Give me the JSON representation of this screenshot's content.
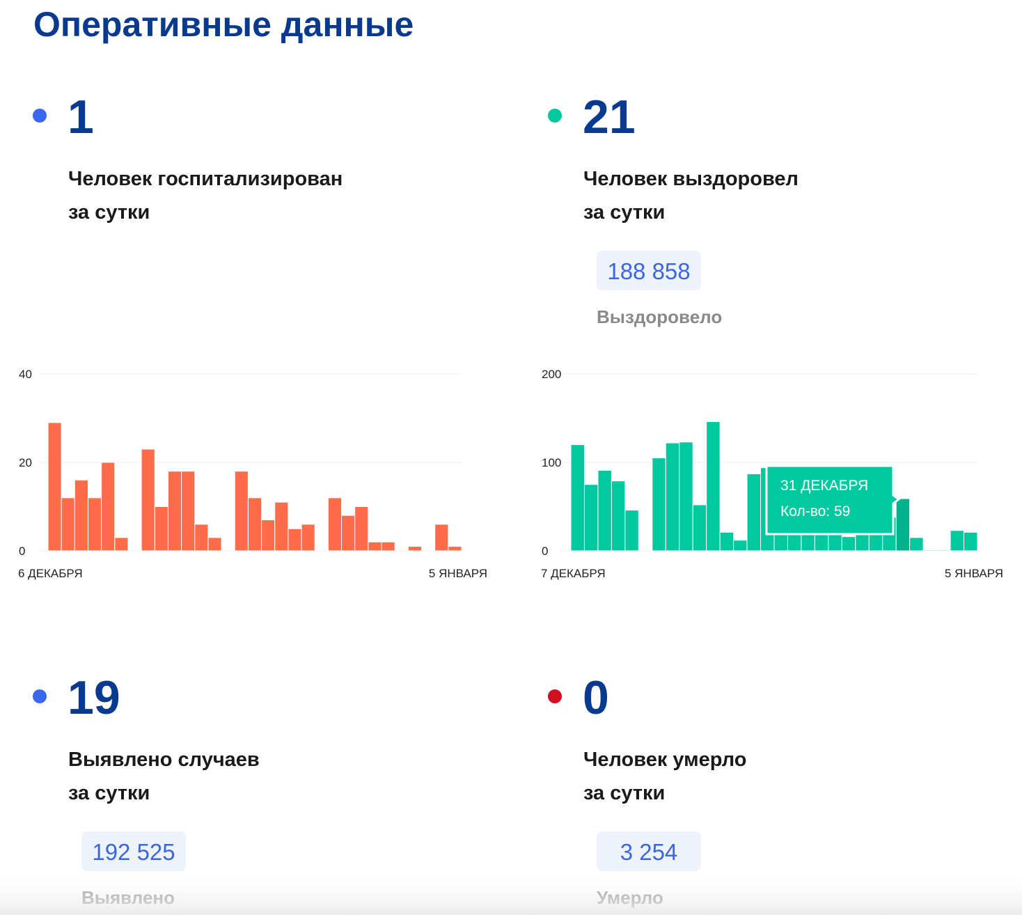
{
  "title": "Оперативные данные",
  "cards": [
    {
      "dot_color": "#3a66f0",
      "value": 1,
      "label_lines": [
        "Человек госпитализирован",
        "за сутки"
      ],
      "chart": {
        "type": "bar",
        "color": "#ff6c4a",
        "ylim": [
          0,
          40
        ],
        "yticks": [
          0,
          20,
          40
        ],
        "grid": true,
        "categories": [
          "6 ДЕКАБРЯ",
          null,
          null,
          null,
          null,
          null,
          null,
          null,
          null,
          null,
          null,
          null,
          null,
          null,
          null,
          null,
          null,
          null,
          null,
          null,
          null,
          null,
          null,
          null,
          null,
          null,
          null,
          null,
          null,
          null,
          "5 ЯНВАРЯ"
        ],
        "values": [
          29,
          12,
          16,
          12,
          20,
          3,
          0,
          23,
          10,
          18,
          18,
          6,
          3,
          0,
          18,
          12,
          7,
          11,
          5,
          6,
          0,
          12,
          8,
          10,
          2,
          2,
          0,
          1,
          0,
          6,
          1
        ]
      }
    },
    {
      "dot_color": "#00c9a0",
      "value": 21,
      "label_lines": [
        "Человек выздоровел",
        "за сутки"
      ],
      "total": "188 858",
      "total_label": "Выздоровело",
      "chart": {
        "type": "bar",
        "color": "#00c9a0",
        "highlight_color": "#00b38c",
        "ylim": [
          0,
          200
        ],
        "yticks": [
          0,
          100,
          200
        ],
        "grid": true,
        "categories": [
          "7 ДЕКАБРЯ",
          null,
          null,
          null,
          null,
          null,
          null,
          null,
          null,
          null,
          null,
          null,
          null,
          null,
          null,
          null,
          null,
          null,
          null,
          null,
          null,
          null,
          null,
          null,
          null,
          null,
          null,
          null,
          null,
          "5 ЯНВАРЯ"
        ],
        "values": [
          120,
          75,
          91,
          79,
          46,
          0,
          105,
          122,
          123,
          52,
          146,
          21,
          12,
          87,
          94,
          25,
          22,
          20,
          20,
          22,
          16,
          20,
          22,
          38,
          59,
          15,
          1,
          1,
          23,
          21
        ],
        "tooltip": {
          "title": "31 ДЕКАБРЯ",
          "text": "Кол-во: 59"
        }
      }
    },
    {
      "dot_color": "#3a66f0",
      "value": 19,
      "label_lines": [
        "Выявлено случаев",
        "за сутки"
      ],
      "total": "192 525",
      "total_label": "Выявлено"
    },
    {
      "dot_color": "#d0101e",
      "value": 0,
      "label_lines": [
        "Человек умерло",
        "за сутки"
      ],
      "total": "3 254",
      "total_label": "Умерло"
    }
  ]
}
